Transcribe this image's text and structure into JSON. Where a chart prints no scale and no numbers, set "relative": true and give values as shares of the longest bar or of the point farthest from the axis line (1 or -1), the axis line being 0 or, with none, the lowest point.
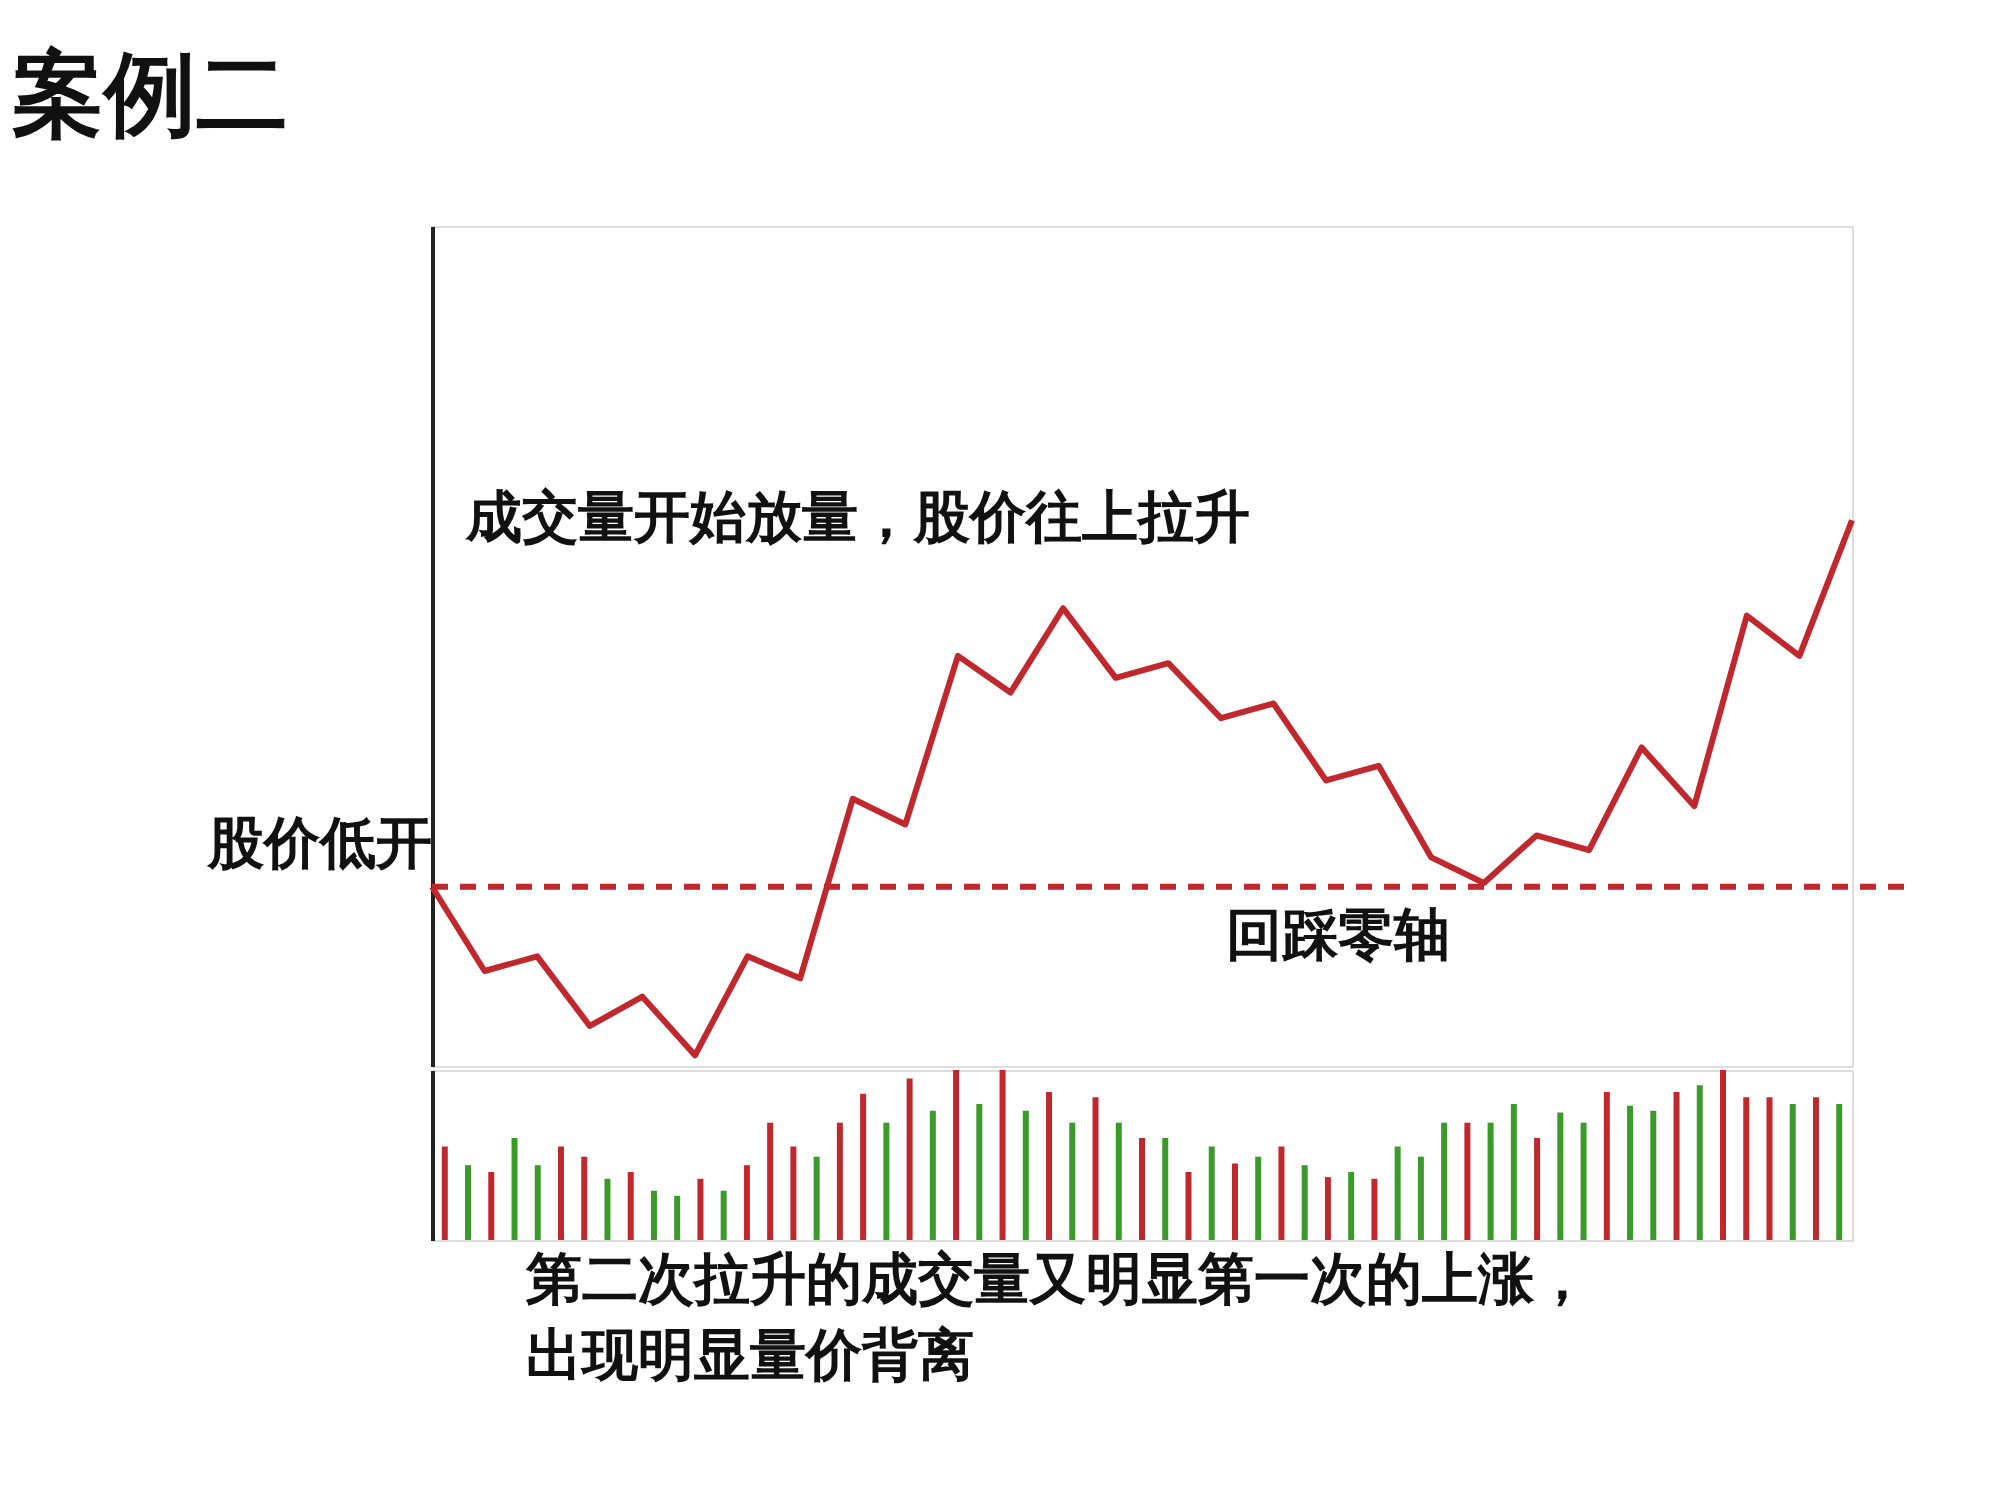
{
  "chart_data": [
    {
      "type": "line",
      "title": "案例二",
      "relative": true,
      "tick_labels": false,
      "grid": false,
      "marker": "none",
      "line_style": "solid",
      "categories": [
        null,
        null,
        null,
        null,
        null,
        null,
        null,
        null,
        null,
        null,
        null,
        null,
        null,
        null,
        null,
        null,
        null,
        null,
        null,
        null,
        null,
        null,
        null,
        null,
        null,
        null,
        null,
        null
      ],
      "series": [
        {
          "color": "#c0282d",
          "values": [
            0,
            -0.23,
            -0.19,
            -0.38,
            -0.3,
            -0.46,
            -0.19,
            -0.25,
            0.24,
            0.17,
            0.63,
            0.53,
            0.76,
            0.57,
            0.61,
            0.46,
            0.5,
            0.29,
            0.33,
            0.08,
            0.01,
            0.14,
            0.1,
            0.38,
            0.22,
            0.74,
            0.63,
            1.0
          ]
        }
      ],
      "ref_lines": [
        {
          "axis": "y",
          "value": 0,
          "color": "#c0282d",
          "line_style": "dashed"
        }
      ],
      "annotations": [
        "成交量开始放量，股价往上拉升",
        "股价低开",
        "回踩零轴"
      ]
    },
    {
      "type": "bar",
      "relative": true,
      "tick_labels": false,
      "grid": false,
      "categories": [
        null,
        null,
        null,
        null,
        null,
        null,
        null,
        null,
        null,
        null,
        null,
        null,
        null,
        null,
        null,
        null,
        null,
        null,
        null,
        null,
        null,
        null,
        null,
        null,
        null,
        null,
        null,
        null,
        null,
        null,
        null,
        null,
        null,
        null,
        null,
        null,
        null,
        null,
        null,
        null,
        null,
        null,
        null,
        null,
        null,
        null,
        null,
        null,
        null,
        null,
        null,
        null,
        null,
        null,
        null,
        null,
        null,
        null,
        null,
        null,
        null
      ],
      "values": [
        0.55,
        0.44,
        0.4,
        0.6,
        0.44,
        0.55,
        0.49,
        0.36,
        0.4,
        0.29,
        0.26,
        0.36,
        0.29,
        0.44,
        0.69,
        0.55,
        0.49,
        0.69,
        0.86,
        0.69,
        0.95,
        0.76,
        1.0,
        0.8,
        1.0,
        0.76,
        0.87,
        0.69,
        0.84,
        0.69,
        0.6,
        0.6,
        0.4,
        0.55,
        0.45,
        0.49,
        0.55,
        0.44,
        0.37,
        0.4,
        0.36,
        0.55,
        0.49,
        0.69,
        0.69,
        0.69,
        0.8,
        0.6,
        0.75,
        0.69,
        0.87,
        0.79,
        0.76,
        0.87,
        0.91,
        1.0,
        0.84,
        0.84,
        0.8,
        0.84,
        0.8
      ],
      "colors": [
        "#c0282d",
        "#3a9a2a",
        "#c0282d",
        "#3a9a2a",
        "#3a9a2a",
        "#c0282d",
        "#c0282d",
        "#3a9a2a",
        "#c0282d",
        "#3a9a2a",
        "#3a9a2a",
        "#c0282d",
        "#3a9a2a",
        "#c0282d",
        "#c0282d",
        "#c0282d",
        "#3a9a2a",
        "#c0282d",
        "#c0282d",
        "#3a9a2a",
        "#c0282d",
        "#3a9a2a",
        "#c0282d",
        "#3a9a2a",
        "#c0282d",
        "#3a9a2a",
        "#c0282d",
        "#3a9a2a",
        "#c0282d",
        "#3a9a2a",
        "#c0282d",
        "#3a9a2a",
        "#c0282d",
        "#3a9a2a",
        "#c0282d",
        "#3a9a2a",
        "#c0282d",
        "#3a9a2a",
        "#c0282d",
        "#3a9a2a",
        "#c0282d",
        "#3a9a2a",
        "#3a9a2a",
        "#3a9a2a",
        "#c0282d",
        "#3a9a2a",
        "#3a9a2a",
        "#c0282d",
        "#3a9a2a",
        "#3a9a2a",
        "#c0282d",
        "#3a9a2a",
        "#3a9a2a",
        "#c0282d",
        "#3a9a2a",
        "#c0282d",
        "#c0282d",
        "#c0282d",
        "#3a9a2a",
        "#c0282d",
        "#3a9a2a"
      ],
      "annotations": [
        "第二次拉升的成交量又明显第一次的上涨，出现明显量价背离"
      ]
    }
  ]
}
